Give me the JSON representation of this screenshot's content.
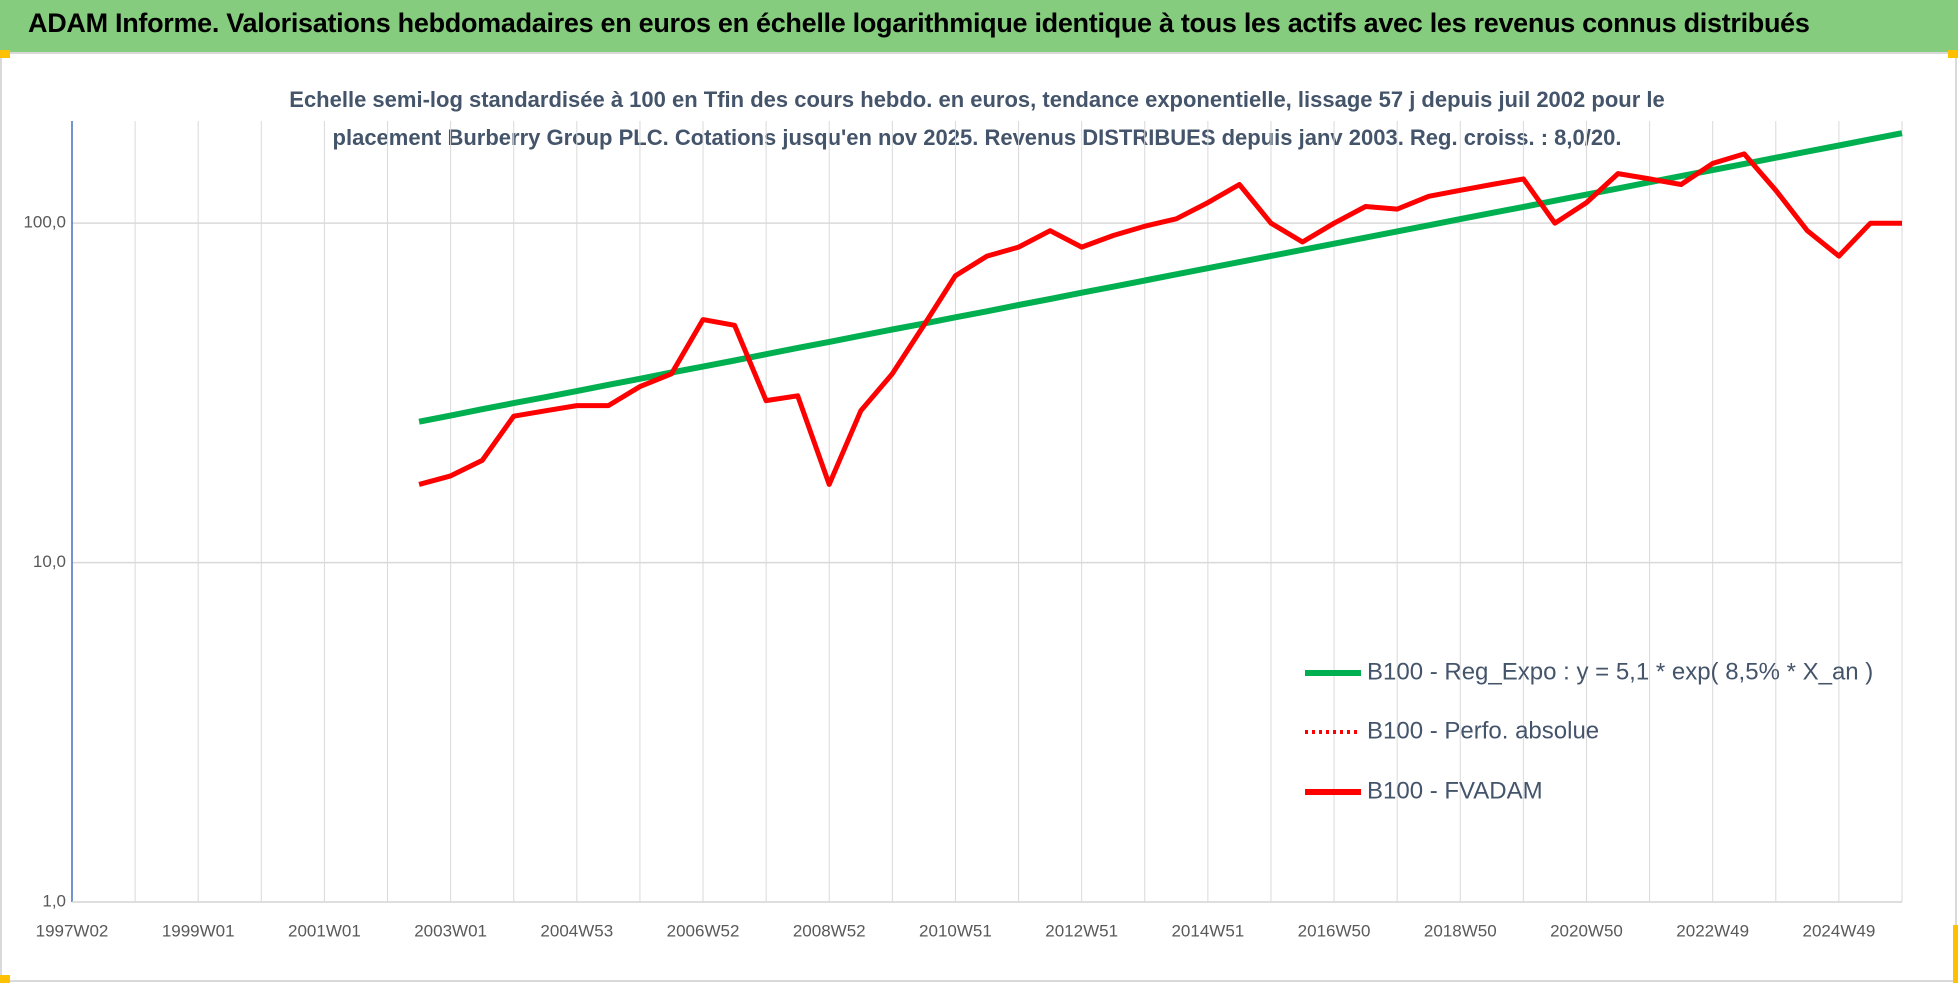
{
  "chart_data": {
    "type": "line",
    "title": "ADAM Informe. Valorisations hebdomadaires en euros en échelle logarithmique identique à tous les actifs avec les revenus connus distribués",
    "subtitle": [
      "Echelle semi-log standardisée à 100 en Tfin des cours hebdo. en euros, tendance exponentielle, lissage 57 j depuis juil 2002 pour le",
      "placement Burberry Group PLC. Cotations jusqu'en nov 2025. Revenus DISTRIBUES depuis janv 2003. Reg. croiss. : 8,0/20."
    ],
    "categories": [
      "1997W02",
      null,
      null,
      null,
      "1999W01",
      null,
      null,
      null,
      "2001W01",
      null,
      null,
      null,
      "2003W01",
      null,
      null,
      null,
      "2004W53",
      null,
      null,
      null,
      "2006W52",
      null,
      null,
      null,
      "2008W52",
      null,
      null,
      null,
      "2010W51",
      null,
      null,
      null,
      "2012W51",
      null,
      null,
      null,
      "2014W51",
      null,
      null,
      null,
      "2016W50",
      null,
      null,
      null,
      "2018W50",
      null,
      null,
      null,
      "2020W50",
      null,
      null,
      null,
      "2022W49",
      null,
      null,
      null,
      "2024W49",
      null,
      null
    ],
    "log_y": true,
    "grid": true,
    "ylim": [
      1,
      200
    ],
    "yticks": [
      {
        "value": 1,
        "label": "1,0"
      },
      {
        "value": 10,
        "label": "10,0"
      },
      {
        "value": 100,
        "label": "100,0"
      }
    ],
    "series": [
      {
        "name": "B100 - Reg_Expo : y = 5,1 * exp( 8,5% *  X_an )",
        "color": "#00b050",
        "style": "solid",
        "values": [
          null,
          null,
          null,
          null,
          null,
          null,
          null,
          null,
          null,
          null,
          null,
          26,
          27.1,
          28.3,
          29.5,
          30.7,
          32.0,
          33.4,
          34.8,
          36.3,
          37.8,
          39.4,
          41.1,
          42.9,
          44.7,
          46.6,
          48.6,
          50.6,
          52.8,
          55.0,
          57.4,
          59.8,
          62.4,
          65.0,
          67.8,
          70.7,
          73.7,
          76.8,
          80.1,
          83.5,
          87.0,
          90.7,
          94.6,
          98.6,
          102.8,
          107.2,
          111.7,
          116.5,
          121.4,
          126.6,
          132.0,
          137.6,
          143.4,
          149.5,
          155.9,
          162.5,
          169.4,
          176.6,
          184.1
        ]
      },
      {
        "name": "B100 - Perfo. absolue",
        "color": "#ff0000",
        "style": "dotted",
        "values": [
          null,
          null,
          null,
          null,
          null,
          null,
          null,
          null,
          null,
          null,
          null,
          null,
          null,
          null,
          null,
          null,
          null,
          null,
          null,
          null,
          null,
          null,
          null,
          null,
          null,
          null,
          null,
          null,
          null,
          null,
          null,
          null,
          null,
          null,
          null,
          null,
          null,
          null,
          null,
          null,
          null,
          null,
          null,
          null,
          null,
          null,
          null,
          null,
          null,
          null,
          null,
          null,
          null,
          null,
          null,
          null,
          null,
          null,
          null
        ]
      },
      {
        "name": "B100 - FVADAM",
        "color": "#ff0000",
        "style": "solid",
        "values": [
          null,
          null,
          null,
          null,
          null,
          null,
          null,
          null,
          null,
          null,
          null,
          17,
          18,
          20,
          27,
          28,
          29,
          29,
          33,
          36,
          52,
          50,
          30,
          31,
          17,
          28,
          36,
          50,
          70,
          80,
          85,
          95,
          85,
          92,
          98,
          103,
          115,
          130,
          100,
          88,
          100,
          112,
          110,
          120,
          125,
          130,
          135,
          100,
          115,
          140,
          135,
          130,
          150,
          160,
          125,
          95,
          80,
          100,
          100
        ]
      }
    ],
    "legend": "right"
  }
}
